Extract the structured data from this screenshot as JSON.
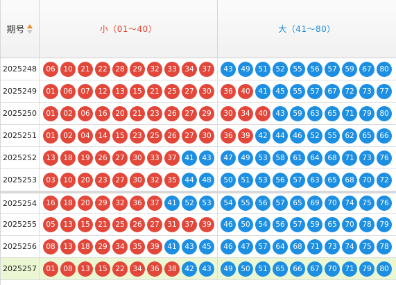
{
  "header": {
    "period_label": "期号",
    "small_label": "小（01～40）",
    "big_label": "大（41～80）"
  },
  "colors": {
    "red_ball": "#e2473a",
    "blue_ball": "#1d8fe3",
    "highlight_row": "#eaf7d2"
  },
  "rows": [
    {
      "period": "2025248",
      "numbers": [
        "06",
        "10",
        "21",
        "22",
        "28",
        "29",
        "32",
        "33",
        "34",
        "37",
        "43",
        "49",
        "51",
        "52",
        "55",
        "56",
        "57",
        "59",
        "67",
        "80"
      ]
    },
    {
      "period": "2025249",
      "numbers": [
        "01",
        "06",
        "07",
        "12",
        "13",
        "15",
        "21",
        "25",
        "27",
        "30",
        "36",
        "40",
        "41",
        "45",
        "55",
        "57",
        "67",
        "72",
        "73",
        "77"
      ]
    },
    {
      "period": "2025250",
      "numbers": [
        "01",
        "02",
        "06",
        "16",
        "20",
        "21",
        "23",
        "26",
        "27",
        "29",
        "30",
        "34",
        "40",
        "43",
        "59",
        "63",
        "65",
        "71",
        "79",
        "80"
      ]
    },
    {
      "period": "2025251",
      "numbers": [
        "01",
        "02",
        "04",
        "14",
        "15",
        "23",
        "25",
        "26",
        "27",
        "30",
        "36",
        "39",
        "42",
        "44",
        "46",
        "52",
        "55",
        "62",
        "65",
        "66"
      ]
    },
    {
      "period": "2025252",
      "numbers": [
        "13",
        "18",
        "19",
        "26",
        "27",
        "30",
        "33",
        "37",
        "41",
        "43",
        "47",
        "49",
        "53",
        "58",
        "61",
        "64",
        "68",
        "71",
        "73",
        "76"
      ]
    },
    {
      "period": "2025253",
      "numbers": [
        "03",
        "10",
        "20",
        "23",
        "27",
        "30",
        "32",
        "35",
        "44",
        "48",
        "50",
        "51",
        "53",
        "56",
        "57",
        "63",
        "65",
        "68",
        "70",
        "72"
      ]
    },
    {
      "period": "2025254",
      "numbers": [
        "16",
        "18",
        "20",
        "29",
        "32",
        "36",
        "37",
        "41",
        "52",
        "53",
        "54",
        "55",
        "56",
        "57",
        "65",
        "69",
        "70",
        "74",
        "75",
        "76"
      ]
    },
    {
      "period": "2025255",
      "numbers": [
        "05",
        "13",
        "15",
        "21",
        "25",
        "26",
        "27",
        "31",
        "37",
        "39",
        "46",
        "50",
        "54",
        "56",
        "57",
        "59",
        "65",
        "70",
        "78",
        "79"
      ]
    },
    {
      "period": "2025256",
      "numbers": [
        "08",
        "13",
        "18",
        "29",
        "34",
        "35",
        "39",
        "41",
        "43",
        "45",
        "46",
        "47",
        "57",
        "64",
        "68",
        "71",
        "73",
        "74",
        "75",
        "78"
      ]
    },
    {
      "period": "2025257",
      "numbers": [
        "01",
        "08",
        "13",
        "15",
        "22",
        "34",
        "36",
        "38",
        "42",
        "43",
        "49",
        "50",
        "51",
        "65",
        "66",
        "67",
        "70",
        "71",
        "79",
        "80"
      ]
    }
  ]
}
